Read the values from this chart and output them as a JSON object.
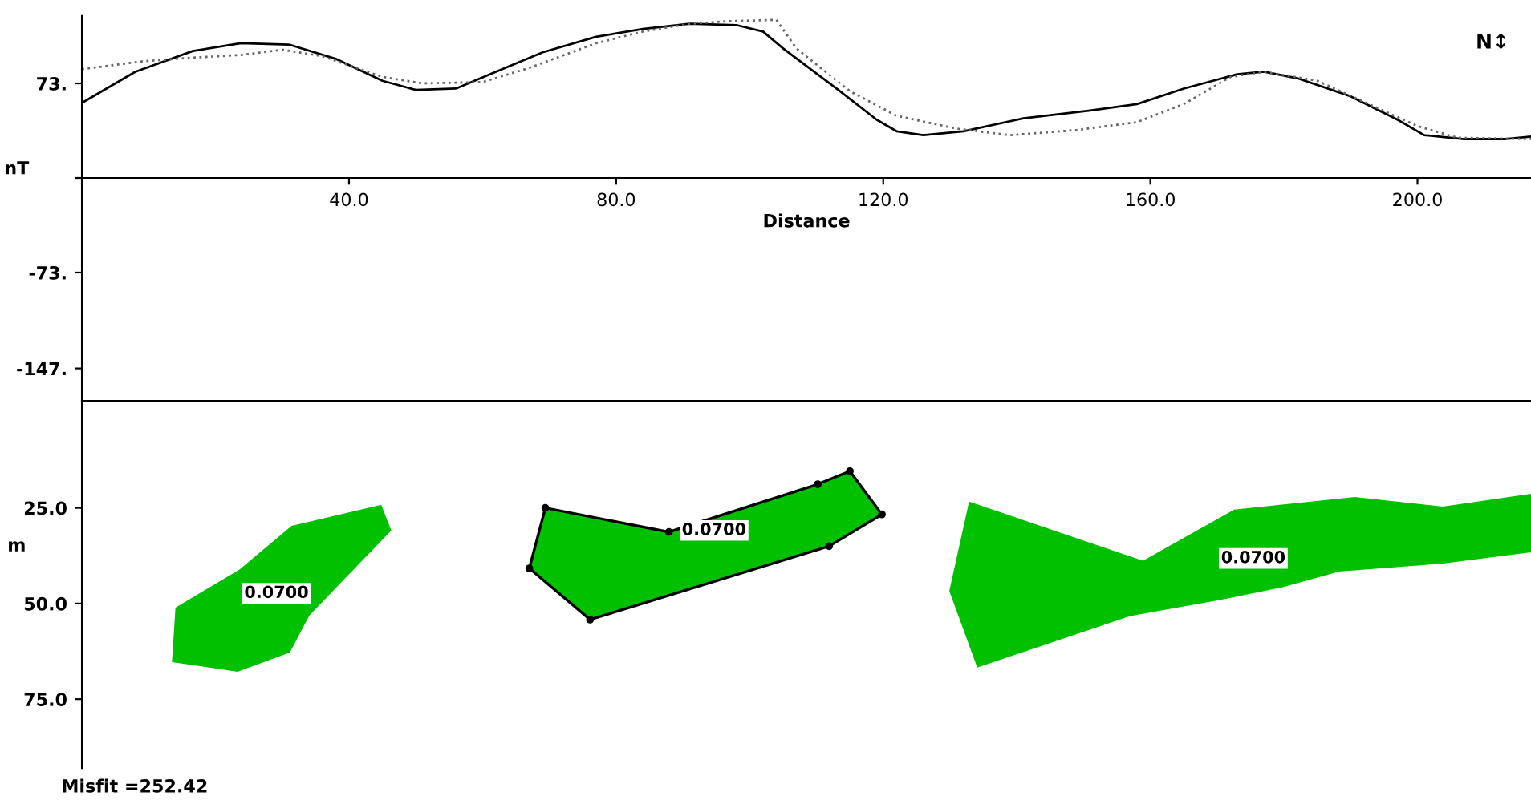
{
  "chart_data": [
    {
      "type": "line",
      "xlabel": "Distance",
      "ylabel": "nT",
      "xlim": [
        0,
        217
      ],
      "ylim": [
        -172,
        125
      ],
      "xticks": [
        {
          "value": 40,
          "label": "40.0"
        },
        {
          "value": 80,
          "label": "80.0"
        },
        {
          "value": 120,
          "label": "120.0"
        },
        {
          "value": 160,
          "label": "160.0"
        },
        {
          "value": 200,
          "label": "200.0"
        }
      ],
      "yticks": [
        {
          "value": 73,
          "label": "73."
        },
        {
          "value": 0,
          "label": null
        },
        {
          "value": -73,
          "label": "-73."
        },
        {
          "value": -147,
          "label": "-147."
        }
      ],
      "grid": false,
      "legend": false,
      "annotations": [
        "N↕"
      ],
      "series": [
        {
          "color": "#000000",
          "line_style": "solid",
          "x": [
            0,
            8,
            16.6,
            23.8,
            31,
            38,
            45,
            50,
            56,
            62,
            69,
            77,
            84,
            91,
            98,
            102,
            105,
            113,
            119,
            122,
            126,
            132,
            141,
            151,
            158,
            165,
            173,
            177,
            182,
            190,
            197,
            201,
            207,
            213,
            217
          ],
          "values": [
            58,
            82,
            98,
            104,
            103,
            92,
            75,
            68,
            69,
            82,
            97,
            109,
            115,
            119,
            118,
            113,
            100,
            69,
            45,
            36,
            33,
            36,
            46,
            52,
            57,
            69,
            80,
            82,
            77,
            63,
            45,
            33,
            30,
            30,
            32
          ]
        },
        {
          "color": "#666666",
          "line_style": "dotted",
          "x": [
            0,
            9,
            17,
            24,
            30,
            36,
            45,
            51,
            60,
            67,
            77,
            84,
            91,
            97,
            104,
            107,
            115,
            122,
            131,
            139,
            149,
            158,
            165,
            172,
            177,
            185,
            194,
            200,
            206,
            217
          ],
          "values": [
            84,
            90,
            93,
            95,
            99,
            94,
            78,
            73,
            74,
            85,
            104,
            113,
            119,
            121,
            122,
            100,
            67,
            48,
            38,
            33,
            37,
            43,
            57,
            78,
            82,
            75,
            54,
            40,
            31,
            30
          ]
        }
      ]
    },
    {
      "type": "area",
      "ylabel": "m",
      "xlim": [
        0,
        217
      ],
      "ylim": [
        93,
        -3
      ],
      "tick_labels": "y",
      "yticks": [
        {
          "value": 25,
          "label": "25.0"
        },
        {
          "value": 50,
          "label": "50.0"
        },
        {
          "value": 75,
          "label": "75.0"
        }
      ],
      "grid": false,
      "legend": false,
      "annotations": [
        "0.0700",
        "0.0700",
        "0.0700",
        "Misfit =252.42"
      ],
      "series": [
        {
          "color": "#00c000",
          "x": [
            13.7,
            14.2,
            23.8,
            31.5,
            44.7,
            46.1,
            33.9,
            31,
            23.3
          ],
          "values": [
            65,
            51.3,
            41.3,
            30,
            24.6,
            30.8,
            52.9,
            62.5,
            67.5
          ]
        },
        {
          "color": "#00c000",
          "marker": "circle",
          "x": [
            67,
            69.4,
            87.9,
            110.2,
            115,
            119.8,
            111.9,
            76.1
          ],
          "values": [
            40.8,
            25,
            31.3,
            18.8,
            15.4,
            26.7,
            35,
            54.2
          ]
        },
        {
          "color": "#00c000",
          "x": [
            130.1,
            133,
            158.9,
            172.6,
            190.6,
            203.8,
            216.8,
            216.8,
            203.8,
            188.2,
            179.8,
            170.2,
            157,
            134.2
          ],
          "values": [
            46.7,
            23.8,
            39.2,
            25.8,
            22.5,
            25,
            21.7,
            36.3,
            39.2,
            41.3,
            45.4,
            48.8,
            52.9,
            66.3
          ]
        }
      ]
    }
  ]
}
